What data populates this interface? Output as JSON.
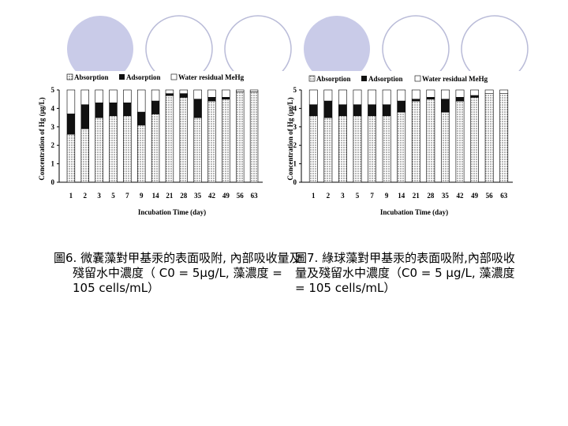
{
  "charts": [
    {
      "legend": [
        "Absorption",
        "Adsorption",
        "Water residual MeHg"
      ],
      "ylabel": "Concentration of Hg (μg/L)",
      "xlabel": "Incubation Time (day)",
      "yticks": [
        "0",
        "1",
        "2",
        "3",
        "4",
        "5"
      ],
      "caption": "圖6. 微囊藻對甲基汞的表面吸附, 內部吸收量及殘留水中濃度（ C0 = 5μg/L, 藻濃度 = 105 cells/mL）"
    },
    {
      "legend": [
        "Absorption",
        "Adsorption",
        "Water residual MeHg"
      ],
      "ylabel": "Concentration of Hg (μg/L)",
      "xlabel": "Incubation Time (day)",
      "yticks": [
        "0",
        "1",
        "2",
        "3",
        "4",
        "5"
      ],
      "caption": "圖7. 綠球藻對甲基汞的表面吸附,內部吸收量及殘留水中濃度（C0 = 5 μg/L, 藻濃度 = 105 cells/mL）"
    }
  ],
  "chart_data": [
    {
      "type": "bar",
      "stacked": true,
      "categories": [
        "1",
        "2",
        "3",
        "5",
        "7",
        "9",
        "14",
        "21",
        "28",
        "35",
        "42",
        "49",
        "56",
        "63"
      ],
      "series": [
        {
          "name": "Absorption",
          "values": [
            2.6,
            2.9,
            3.5,
            3.6,
            3.6,
            3.1,
            3.7,
            4.7,
            4.6,
            3.5,
            4.4,
            4.5,
            4.9,
            4.9
          ]
        },
        {
          "name": "Adsorption",
          "values": [
            1.1,
            1.3,
            0.8,
            0.7,
            0.7,
            0.7,
            0.7,
            0.1,
            0.2,
            1.0,
            0.2,
            0.1,
            0.0,
            0.0
          ]
        },
        {
          "name": "Water residual MeHg",
          "values": [
            1.3,
            0.8,
            0.7,
            0.7,
            0.7,
            1.2,
            0.6,
            0.2,
            0.2,
            0.5,
            0.4,
            0.4,
            0.1,
            0.1
          ]
        }
      ],
      "ylim": [
        0,
        5
      ],
      "grid": false,
      "legend_position": "top"
    },
    {
      "type": "bar",
      "stacked": true,
      "categories": [
        "1",
        "2",
        "3",
        "5",
        "7",
        "9",
        "14",
        "21",
        "28",
        "35",
        "42",
        "49",
        "56",
        "63"
      ],
      "series": [
        {
          "name": "Absorption",
          "values": [
            3.6,
            3.5,
            3.6,
            3.6,
            3.6,
            3.6,
            3.8,
            4.4,
            4.5,
            3.8,
            4.4,
            4.6,
            4.8,
            4.8
          ]
        },
        {
          "name": "Adsorption",
          "values": [
            0.6,
            0.9,
            0.6,
            0.6,
            0.6,
            0.6,
            0.6,
            0.1,
            0.1,
            0.7,
            0.2,
            0.1,
            0.0,
            0.0
          ]
        },
        {
          "name": "Water residual MeHg",
          "values": [
            0.8,
            0.6,
            0.8,
            0.8,
            0.8,
            0.8,
            0.6,
            0.5,
            0.4,
            0.5,
            0.4,
            0.3,
            0.2,
            0.2
          ]
        }
      ],
      "ylim": [
        0,
        5
      ],
      "grid": false,
      "legend_position": "top"
    }
  ]
}
